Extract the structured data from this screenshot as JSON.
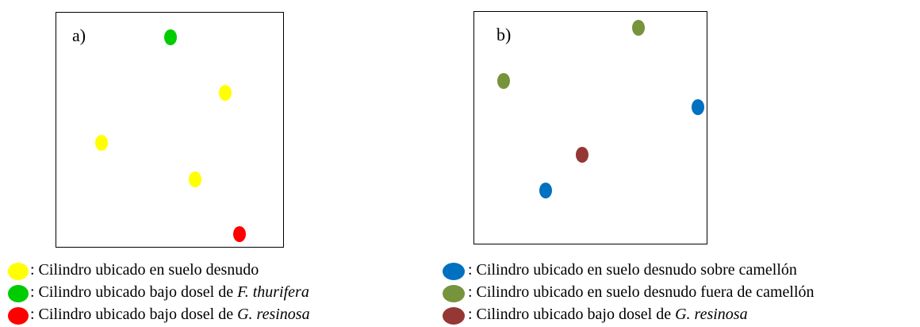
{
  "colors": {
    "yellow": "#ffff00",
    "green": "#00cc00",
    "red": "#ff0000",
    "blue": "#0070c0",
    "olive": "#77933c",
    "brown": "#953735"
  },
  "panel_a": {
    "label": "a)",
    "cylinders": [
      {
        "category": "green",
        "name": "dot-a-green-1"
      },
      {
        "category": "yellow",
        "name": "dot-a-yellow-1"
      },
      {
        "category": "yellow",
        "name": "dot-a-yellow-2"
      },
      {
        "category": "yellow",
        "name": "dot-a-yellow-3"
      },
      {
        "category": "red",
        "name": "dot-a-red-1"
      }
    ]
  },
  "panel_b": {
    "label": "b)",
    "cylinders": [
      {
        "category": "olive",
        "name": "dot-b-olive-1"
      },
      {
        "category": "olive",
        "name": "dot-b-olive-2"
      },
      {
        "category": "blue",
        "name": "dot-b-blue-1"
      },
      {
        "category": "brown",
        "name": "dot-b-brown-1"
      },
      {
        "category": "blue",
        "name": "dot-b-blue-2"
      }
    ]
  },
  "legend_left": [
    {
      "color": "yellow",
      "text": ": Cilindro ubicado en suelo desnudo",
      "italic": ""
    },
    {
      "color": "green",
      "text": ": Cilindro ubicado bajo dosel de ",
      "italic": "F. thurifera"
    },
    {
      "color": "red",
      "text": ": Cilindro ubicado bajo dosel de ",
      "italic": "G. resinosa"
    }
  ],
  "legend_right": [
    {
      "color": "blue",
      "text": ": Cilindro ubicado en suelo desnudo sobre camellón",
      "italic": ""
    },
    {
      "color": "olive",
      "text": ": Cilindro ubicado en suelo desnudo fuera de camellón",
      "italic": ""
    },
    {
      "color": "brown",
      "text": ": Cilindro ubicado bajo dosel de ",
      "italic": "G. resinosa"
    }
  ]
}
